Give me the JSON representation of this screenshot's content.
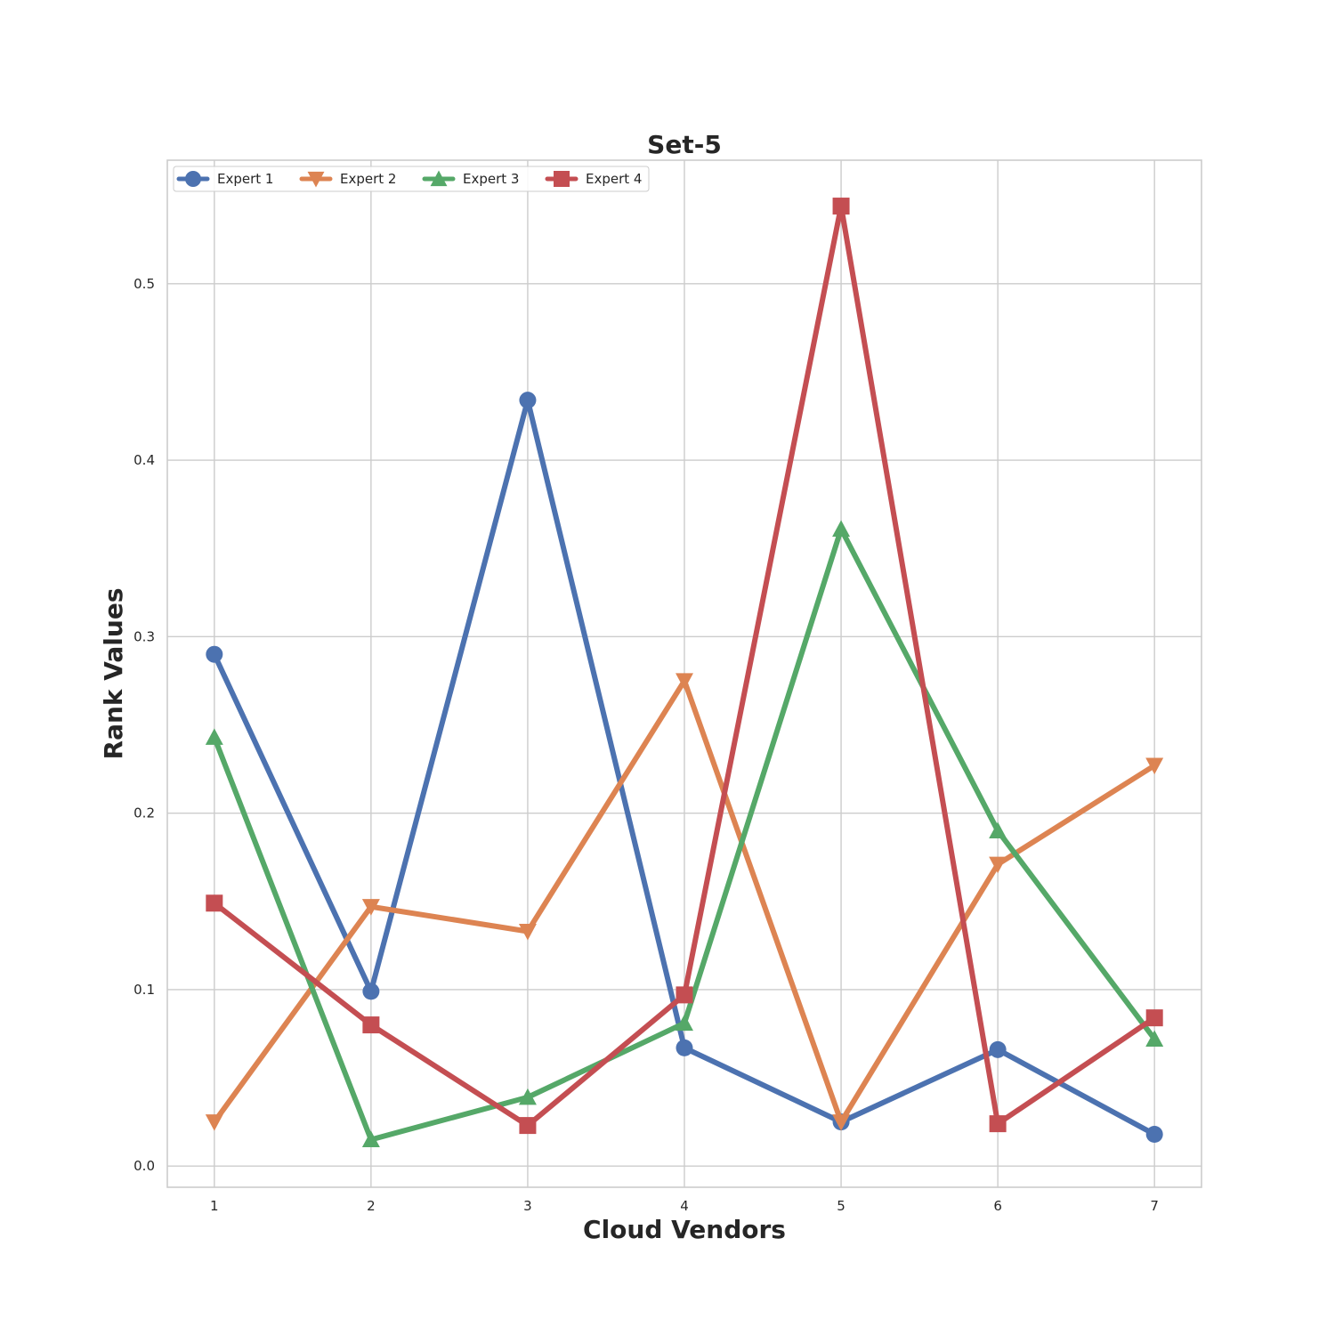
{
  "chart_data": {
    "type": "line",
    "title": "Set-5",
    "xlabel": "Cloud Vendors",
    "ylabel": "Rank Values",
    "x": [
      1,
      2,
      3,
      4,
      5,
      6,
      7
    ],
    "xlim": [
      0.7,
      7.3
    ],
    "ylim": [
      -0.012,
      0.57
    ],
    "yticks": [
      0.0,
      0.1,
      0.2,
      0.3,
      0.4,
      0.5
    ],
    "ytick_labels": [
      "0.0",
      "0.1",
      "0.2",
      "0.3",
      "0.4",
      "0.5"
    ],
    "xticks": [
      1,
      2,
      3,
      4,
      5,
      6,
      7
    ],
    "xtick_labels": [
      "1",
      "2",
      "3",
      "4",
      "5",
      "6",
      "7"
    ],
    "grid": true,
    "legend_position": "top-left",
    "series": [
      {
        "name": "Expert 1",
        "marker": "circle",
        "color": "#4c72b0",
        "values": [
          0.29,
          0.099,
          0.434,
          0.067,
          0.025,
          0.066,
          0.018
        ]
      },
      {
        "name": "Expert 2",
        "marker": "triangle-down",
        "color": "#dd8452",
        "values": [
          0.025,
          0.147,
          0.133,
          0.275,
          0.025,
          0.171,
          0.227
        ]
      },
      {
        "name": "Expert 3",
        "marker": "triangle-up",
        "color": "#55a868",
        "values": [
          0.243,
          0.015,
          0.039,
          0.081,
          0.361,
          0.19,
          0.072
        ]
      },
      {
        "name": "Expert 4",
        "marker": "square",
        "color": "#c44e52",
        "values": [
          0.149,
          0.08,
          0.023,
          0.097,
          0.544,
          0.024,
          0.084
        ]
      }
    ]
  }
}
